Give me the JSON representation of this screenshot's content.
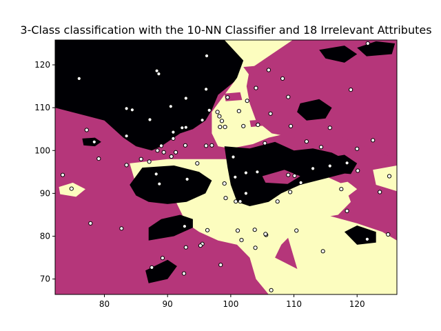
{
  "chart_data": {
    "type": "scatter",
    "title": "3-Class classification with the 10-NN Classifier and 18 Irrelevant Attributes",
    "xlabel": "",
    "ylabel": "",
    "xlim": [
      72.2,
      126.3
    ],
    "ylim": [
      66.4,
      125.8
    ],
    "xticks": [
      80,
      90,
      100,
      110,
      120
    ],
    "yticks": [
      70,
      80,
      90,
      100,
      110,
      120
    ],
    "grid": false,
    "legend": "none",
    "class_colors": {
      "A": "#000004",
      "B": "#b5367a",
      "C": "#fcfdbf"
    },
    "point_style": {
      "face": "#ffffff",
      "edge": "#000000"
    },
    "decision_regions": [
      {
        "class": "A",
        "polygon": [
          [
            72.2,
            125.8
          ],
          [
            104,
            125.8
          ],
          [
            103,
            119
          ],
          [
            100.5,
            116
          ],
          [
            98,
            113
          ],
          [
            97,
            109.5
          ],
          [
            96,
            107
          ],
          [
            94,
            105
          ],
          [
            92,
            104
          ],
          [
            91,
            103
          ],
          [
            89,
            101
          ],
          [
            87.5,
            100
          ],
          [
            85,
            101
          ],
          [
            83,
            103
          ],
          [
            80,
            107
          ],
          [
            72.2,
            110
          ]
        ]
      },
      {
        "class": "C",
        "polygon": [
          [
            99,
            125.8
          ],
          [
            126.3,
            125.8
          ],
          [
            126.3,
            121
          ],
          [
            123,
            116
          ],
          [
            119,
            111
          ],
          [
            116,
            107
          ],
          [
            113,
            106
          ],
          [
            109,
            104
          ],
          [
            106,
            103
          ],
          [
            103.5,
            101.5
          ],
          [
            100,
            100.5
          ],
          [
            98,
            101
          ],
          [
            97,
            104
          ],
          [
            97,
            109
          ],
          [
            99,
            113
          ],
          [
            101,
            117
          ],
          [
            102,
            121
          ]
        ]
      },
      {
        "class": "B",
        "polygon": [
          [
            103,
            119
          ],
          [
            110,
            126
          ],
          [
            126.3,
            126
          ],
          [
            126.3,
            98
          ],
          [
            121,
            101
          ],
          [
            117,
            103.5
          ],
          [
            114,
            104
          ],
          [
            110,
            103
          ],
          [
            106.5,
            104
          ],
          [
            104,
            107
          ],
          [
            103,
            111
          ],
          [
            102.5,
            115
          ]
        ]
      },
      {
        "class": "C",
        "polygon": [
          [
            84,
            97
          ],
          [
            90,
            98
          ],
          [
            96,
            98
          ],
          [
            101,
            98
          ],
          [
            105,
            96
          ],
          [
            110,
            95
          ],
          [
            115,
            94
          ],
          [
            118,
            92
          ],
          [
            119,
            88
          ],
          [
            117,
            85
          ],
          [
            113,
            84
          ],
          [
            110,
            81
          ],
          [
            108,
            78
          ],
          [
            107,
            75
          ],
          [
            111,
            72
          ],
          [
            114,
            70
          ],
          [
            117,
            68
          ],
          [
            118,
            66.4
          ],
          [
            106,
            66.4
          ],
          [
            104,
            70
          ],
          [
            103,
            75
          ],
          [
            101,
            78
          ],
          [
            98,
            79
          ],
          [
            95,
            81
          ],
          [
            93,
            83
          ],
          [
            92,
            86
          ],
          [
            91,
            89
          ],
          [
            89,
            90
          ],
          [
            87,
            90
          ],
          [
            85,
            92
          ]
        ]
      },
      {
        "class": "C",
        "polygon": [
          [
            110,
            87
          ],
          [
            115,
            85
          ],
          [
            120,
            83
          ],
          [
            124,
            81
          ],
          [
            126.3,
            79
          ],
          [
            126.3,
            66.4
          ],
          [
            113,
            66.4
          ],
          [
            111,
            70
          ],
          [
            110,
            75
          ],
          [
            109,
            80
          ]
        ]
      },
      {
        "class": "A",
        "polygon": [
          [
            99,
            101
          ],
          [
            103,
            100.5
          ],
          [
            107,
            102
          ],
          [
            110,
            100
          ],
          [
            113,
            100.5
          ],
          [
            116,
            99.5
          ],
          [
            118,
            98
          ],
          [
            119,
            95
          ],
          [
            115,
            93.5
          ],
          [
            111,
            92
          ],
          [
            108,
            90
          ],
          [
            106,
            88
          ],
          [
            103,
            87
          ],
          [
            101,
            88
          ],
          [
            100,
            92
          ],
          [
            99.5,
            96
          ]
        ]
      },
      {
        "class": "A",
        "polygon": [
          [
            86,
            96
          ],
          [
            91,
            96.5
          ],
          [
            95,
            95
          ],
          [
            97,
            93
          ],
          [
            96,
            90
          ],
          [
            93,
            88
          ],
          [
            90,
            87.5
          ],
          [
            87,
            88
          ],
          [
            85,
            89.5
          ],
          [
            84,
            92
          ]
        ]
      },
      {
        "class": "A",
        "polygon": [
          [
            87,
            79
          ],
          [
            91,
            80
          ],
          [
            94,
            82
          ],
          [
            94,
            84
          ],
          [
            92,
            85
          ],
          [
            89,
            84
          ],
          [
            87,
            82
          ]
        ]
      },
      {
        "class": "A",
        "polygon": [
          [
            86.5,
            72
          ],
          [
            90,
            74.5
          ],
          [
            91.5,
            73
          ],
          [
            90,
            70
          ],
          [
            87,
            69
          ]
        ]
      },
      {
        "class": "A",
        "polygon": [
          [
            111,
            111
          ],
          [
            114,
            112
          ],
          [
            116,
            110
          ],
          [
            115,
            107.5
          ],
          [
            112,
            107
          ],
          [
            110.5,
            109
          ]
        ]
      },
      {
        "class": "A",
        "polygon": [
          [
            114,
            98
          ],
          [
            118,
            99
          ],
          [
            120,
            97
          ],
          [
            119,
            94.5
          ],
          [
            115,
            95
          ]
        ]
      },
      {
        "class": "A",
        "polygon": [
          [
            118,
            81
          ],
          [
            120,
            82.5
          ],
          [
            123,
            81
          ],
          [
            123,
            78.5
          ],
          [
            120,
            78
          ]
        ]
      },
      {
        "class": "A",
        "polygon": [
          [
            114,
            123.5
          ],
          [
            118,
            124.5
          ],
          [
            120,
            122.5
          ],
          [
            118,
            120.5
          ],
          [
            115,
            121.5
          ]
        ]
      },
      {
        "class": "A",
        "polygon": [
          [
            120,
            124
          ],
          [
            123,
            125.5
          ],
          [
            126,
            125
          ],
          [
            125.5,
            122.5
          ],
          [
            121.5,
            122
          ]
        ]
      },
      {
        "class": "A",
        "polygon": [
          [
            76.5,
            102.8
          ],
          [
            78.5,
            103
          ],
          [
            79.5,
            102
          ],
          [
            78.5,
            101
          ],
          [
            76.7,
            101.2
          ]
        ]
      },
      {
        "class": "C",
        "polygon": [
          [
            72.8,
            91.5
          ],
          [
            75,
            92.5
          ],
          [
            77,
            91
          ],
          [
            75.5,
            89.2
          ],
          [
            73,
            89.8
          ]
        ]
      },
      {
        "class": "C",
        "polygon": [
          [
            116,
            92
          ],
          [
            118.5,
            92.7
          ],
          [
            120,
            91
          ],
          [
            118.5,
            89.3
          ],
          [
            116,
            89.7
          ]
        ]
      },
      {
        "class": "C",
        "polygon": [
          [
            122.5,
            95.5
          ],
          [
            126.3,
            96.5
          ],
          [
            126.3,
            90.5
          ],
          [
            123,
            92
          ]
        ]
      },
      {
        "class": "B",
        "polygon": [
          [
            105,
            94
          ],
          [
            108.5,
            95.5
          ],
          [
            111,
            94
          ],
          [
            109,
            92.2
          ],
          [
            105.5,
            92.5
          ]
        ]
      },
      {
        "class": "B",
        "polygon": [
          [
            108,
            113.8
          ],
          [
            111.5,
            114
          ],
          [
            112,
            112.3
          ],
          [
            109,
            111.8
          ],
          [
            107.8,
            112.6
          ]
        ]
      },
      {
        "class": "B",
        "polygon": [
          [
            99,
            113.3
          ],
          [
            101.5,
            113.6
          ],
          [
            101.8,
            111.8
          ],
          [
            99.2,
            111.5
          ]
        ]
      },
      {
        "class": "B",
        "polygon": [
          [
            103,
            107
          ],
          [
            105,
            107.2
          ],
          [
            105.2,
            105.8
          ],
          [
            103.2,
            105.5
          ]
        ]
      },
      {
        "class": "B",
        "polygon": [
          [
            102,
            119.5
          ],
          [
            106,
            120
          ],
          [
            107,
            118.5
          ],
          [
            103,
            117.5
          ]
        ]
      }
    ],
    "points": [
      [
        76,
        116.8
      ],
      [
        88.3,
        118.6
      ],
      [
        88.6,
        117.9
      ],
      [
        96.2,
        122.1
      ],
      [
        121.7,
        125
      ],
      [
        119,
        114.2
      ],
      [
        106,
        118.8
      ],
      [
        108.2,
        116.8
      ],
      [
        109.1,
        112.5
      ],
      [
        104,
        114.6
      ],
      [
        99.5,
        112.4
      ],
      [
        102.6,
        111.6
      ],
      [
        96.1,
        114.3
      ],
      [
        92.9,
        112.2
      ],
      [
        90.5,
        110.3
      ],
      [
        83.5,
        109.8
      ],
      [
        84.4,
        109.5
      ],
      [
        87.2,
        107.2
      ],
      [
        95.5,
        107.1
      ],
      [
        96.6,
        109.4
      ],
      [
        97.9,
        109
      ],
      [
        98.6,
        106.9
      ],
      [
        98.2,
        108
      ],
      [
        101.3,
        109.2
      ],
      [
        106.3,
        108.6
      ],
      [
        104.3,
        106
      ],
      [
        102,
        105.7
      ],
      [
        98.3,
        105.5
      ],
      [
        99.1,
        105.5
      ],
      [
        92.3,
        105.3
      ],
      [
        92.9,
        105.4
      ],
      [
        90.9,
        104.3
      ],
      [
        92.8,
        101.2
      ],
      [
        97,
        101.2
      ],
      [
        96.1,
        101.1
      ],
      [
        77.2,
        104.8
      ],
      [
        78.4,
        102
      ],
      [
        83.5,
        103.4
      ],
      [
        90.9,
        102.8
      ],
      [
        89,
        101.1
      ],
      [
        88.4,
        100
      ],
      [
        89.4,
        99.6
      ],
      [
        91.3,
        99.6
      ],
      [
        87.1,
        97.4
      ],
      [
        85.8,
        98
      ],
      [
        94.7,
        97
      ],
      [
        90.6,
        98.6
      ],
      [
        100.4,
        98.5
      ],
      [
        105.4,
        101.7
      ],
      [
        109.5,
        105.7
      ],
      [
        115.7,
        105.3
      ],
      [
        112,
        102.1
      ],
      [
        114.3,
        100.8
      ],
      [
        120,
        100.4
      ],
      [
        122.5,
        102.4
      ],
      [
        118.4,
        97.1
      ],
      [
        115.7,
        96.4
      ],
      [
        113,
        95.8
      ],
      [
        120.1,
        95.3
      ],
      [
        109.1,
        94.3
      ],
      [
        110.1,
        94.1
      ],
      [
        111.1,
        92.5
      ],
      [
        104.2,
        95
      ],
      [
        102.4,
        94.8
      ],
      [
        100.7,
        93.8
      ],
      [
        99,
        92.3
      ],
      [
        93.1,
        93.3
      ],
      [
        88.2,
        94.5
      ],
      [
        88.7,
        92.2
      ],
      [
        83.5,
        96.6
      ],
      [
        79.1,
        98.1
      ],
      [
        73.4,
        94.3
      ],
      [
        74.8,
        91.1
      ],
      [
        77.8,
        83
      ],
      [
        82.7,
        81.8
      ],
      [
        99.2,
        88.9
      ],
      [
        100.8,
        88.1
      ],
      [
        101.5,
        88.1
      ],
      [
        102.4,
        90
      ],
      [
        107.4,
        88.1
      ],
      [
        109.4,
        90.3
      ],
      [
        117.5,
        91
      ],
      [
        123.6,
        90.3
      ],
      [
        125.1,
        94
      ],
      [
        118.4,
        85.9
      ],
      [
        121.6,
        79.3
      ],
      [
        124.9,
        80.4
      ],
      [
        114.6,
        76.5
      ],
      [
        110.4,
        81.3
      ],
      [
        105.6,
        80.3
      ],
      [
        105.5,
        80.5
      ],
      [
        103.8,
        81.5
      ],
      [
        101.1,
        81.3
      ],
      [
        101.7,
        79.1
      ],
      [
        103.9,
        77.3
      ],
      [
        96.3,
        81.4
      ],
      [
        92.7,
        82.3
      ],
      [
        95.5,
        78.2
      ],
      [
        95.2,
        77.8
      ],
      [
        92.9,
        77.4
      ],
      [
        89.2,
        74.9
      ],
      [
        87.5,
        72.7
      ],
      [
        92.6,
        71.3
      ],
      [
        98.4,
        73.3
      ],
      [
        106.4,
        67.4
      ]
    ]
  }
}
